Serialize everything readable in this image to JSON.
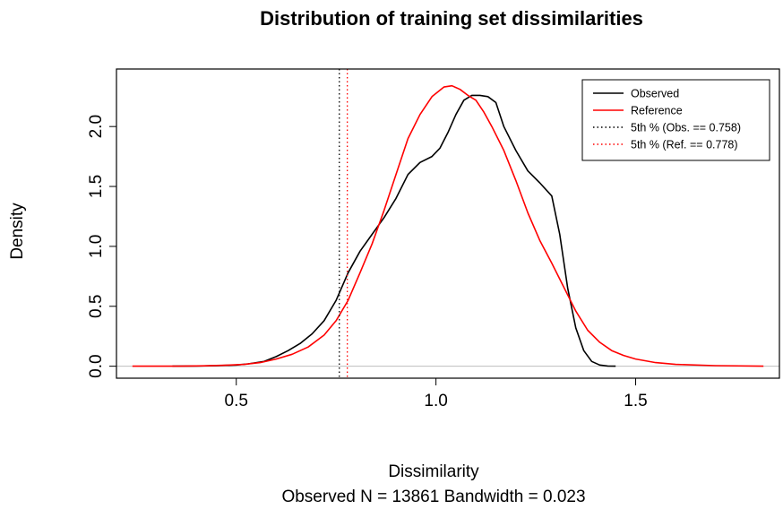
{
  "chart_data": {
    "type": "line",
    "title": "Distribution of training set dissimilarities",
    "xlabel": "Dissimilarity",
    "ylabel": "Density",
    "subtitle": "Observed N = 13861  Bandwidth = 0.023",
    "xlim": [
      0.2,
      1.86
    ],
    "ylim": [
      -0.1,
      2.48
    ],
    "x_ticks": [
      0.5,
      1.0,
      1.5
    ],
    "x_tick_labels": [
      "0.5",
      "1.0",
      "1.5"
    ],
    "y_ticks": [
      0.0,
      0.5,
      1.0,
      1.5,
      2.0
    ],
    "y_tick_labels": [
      "0.0",
      "0.5",
      "1.0",
      "1.5",
      "2.0"
    ],
    "baseline_y": 0,
    "legend_position": "top-right",
    "series": [
      {
        "name": "Observed",
        "color": "#000000",
        "line": "solid",
        "x": [
          0.34,
          0.4,
          0.45,
          0.5,
          0.53,
          0.57,
          0.6,
          0.63,
          0.66,
          0.69,
          0.72,
          0.75,
          0.78,
          0.81,
          0.84,
          0.87,
          0.9,
          0.93,
          0.96,
          0.99,
          1.01,
          1.03,
          1.05,
          1.07,
          1.09,
          1.11,
          1.13,
          1.15,
          1.17,
          1.2,
          1.23,
          1.26,
          1.29,
          1.31,
          1.33,
          1.35,
          1.37,
          1.39,
          1.41,
          1.43,
          1.45
        ],
        "y": [
          0.0,
          0.002,
          0.004,
          0.01,
          0.02,
          0.04,
          0.08,
          0.13,
          0.19,
          0.27,
          0.38,
          0.55,
          0.78,
          0.96,
          1.1,
          1.24,
          1.4,
          1.6,
          1.7,
          1.75,
          1.82,
          1.95,
          2.1,
          2.22,
          2.26,
          2.26,
          2.25,
          2.2,
          2.0,
          1.8,
          1.63,
          1.53,
          1.42,
          1.1,
          0.65,
          0.32,
          0.13,
          0.04,
          0.01,
          0.002,
          0.0
        ]
      },
      {
        "name": "Reference",
        "color": "#ff0000",
        "line": "solid",
        "x": [
          0.24,
          0.3,
          0.36,
          0.42,
          0.47,
          0.52,
          0.56,
          0.6,
          0.64,
          0.68,
          0.72,
          0.75,
          0.78,
          0.81,
          0.84,
          0.87,
          0.9,
          0.93,
          0.96,
          0.99,
          1.02,
          1.04,
          1.06,
          1.08,
          1.1,
          1.12,
          1.14,
          1.17,
          1.2,
          1.23,
          1.26,
          1.29,
          1.32,
          1.35,
          1.38,
          1.41,
          1.44,
          1.47,
          1.5,
          1.55,
          1.6,
          1.7,
          1.82
        ],
        "y": [
          0.0,
          0.0,
          0.0,
          0.003,
          0.008,
          0.015,
          0.03,
          0.06,
          0.1,
          0.16,
          0.26,
          0.38,
          0.55,
          0.78,
          1.02,
          1.3,
          1.6,
          1.9,
          2.1,
          2.25,
          2.33,
          2.34,
          2.31,
          2.26,
          2.22,
          2.12,
          2.0,
          1.8,
          1.55,
          1.28,
          1.05,
          0.86,
          0.66,
          0.46,
          0.3,
          0.2,
          0.13,
          0.09,
          0.06,
          0.03,
          0.015,
          0.005,
          0.0
        ]
      },
      {
        "name": "5th % (Obs. == 0.758)",
        "color": "#000000",
        "line": "dotted",
        "vline_x": 0.758
      },
      {
        "name": "5th % (Ref. == 0.778)",
        "color": "#ff0000",
        "line": "dotted",
        "vline_x": 0.778
      }
    ]
  }
}
